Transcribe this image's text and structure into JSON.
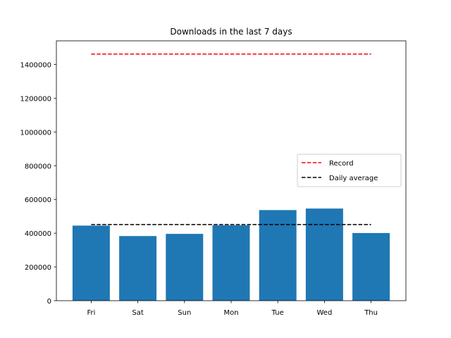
{
  "chart_data": {
    "type": "bar",
    "title": "Downloads in the last 7 days",
    "xlabel": "",
    "ylabel": "",
    "categories": [
      "Fri",
      "Sat",
      "Sun",
      "Mon",
      "Tue",
      "Wed",
      "Thu"
    ],
    "values": [
      445000,
      383000,
      396000,
      447000,
      537000,
      546000,
      401000
    ],
    "ylim": [
      0,
      1540000
    ],
    "yticks": [
      0,
      200000,
      400000,
      600000,
      800000,
      1000000,
      1200000,
      1400000
    ],
    "ytick_labels": [
      "0",
      "200000",
      "400000",
      "600000",
      "800000",
      "1000000",
      "1200000",
      "1400000"
    ],
    "bar_color": "#1f77b4",
    "lines": [
      {
        "name": "Record",
        "value": 1462000,
        "color": "#ff0000",
        "style": "dashed"
      },
      {
        "name": "Daily average",
        "value": 451000,
        "color": "#000000",
        "style": "dashed"
      }
    ],
    "legend": {
      "placement": "center-right",
      "entries": [
        "Record",
        "Daily average"
      ]
    },
    "grid": false
  }
}
